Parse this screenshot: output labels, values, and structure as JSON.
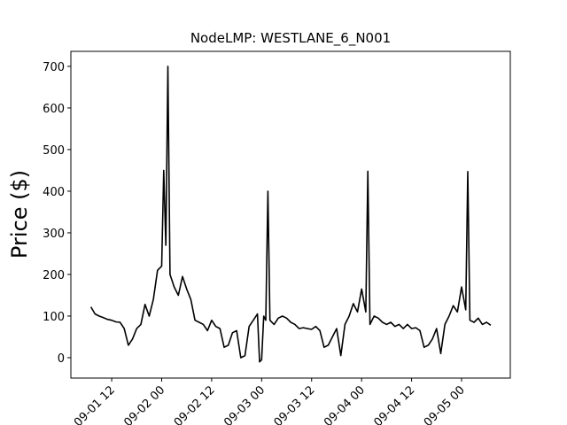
{
  "chart_data": {
    "type": "line",
    "title": "NodeLMP: WESTLANE_6_N001",
    "y_label": "Price ($)",
    "x": [
      "09-01 07:00",
      "09-01 08:00",
      "09-01 09:00",
      "09-01 10:00",
      "09-01 11:00",
      "09-01 12:00",
      "09-01 13:00",
      "09-01 14:00",
      "09-01 15:00",
      "09-01 16:00",
      "09-01 17:00",
      "09-01 18:00",
      "09-01 19:00",
      "09-01 20:00",
      "09-01 21:00",
      "09-01 22:00",
      "09-01 23:00",
      "09-02 00:00",
      "09-02 00:30",
      "09-02 01:00",
      "09-02 01:30",
      "09-02 02:00",
      "09-02 03:00",
      "09-02 04:00",
      "09-02 05:00",
      "09-02 06:00",
      "09-02 07:00",
      "09-02 08:00",
      "09-02 09:00",
      "09-02 10:00",
      "09-02 11:00",
      "09-02 12:00",
      "09-02 13:00",
      "09-02 14:00",
      "09-02 15:00",
      "09-02 16:00",
      "09-02 17:00",
      "09-02 18:00",
      "09-02 19:00",
      "09-02 20:00",
      "09-02 21:00",
      "09-02 22:00",
      "09-02 23:00",
      "09-02 23:30",
      "09-03 00:00",
      "09-03 00:30",
      "09-03 01:00",
      "09-03 01:30",
      "09-03 02:00",
      "09-03 03:00",
      "09-03 04:00",
      "09-03 05:00",
      "09-03 06:00",
      "09-03 07:00",
      "09-03 08:00",
      "09-03 09:00",
      "09-03 10:00",
      "09-03 11:00",
      "09-03 12:00",
      "09-03 13:00",
      "09-03 14:00",
      "09-03 15:00",
      "09-03 16:00",
      "09-03 17:00",
      "09-03 18:00",
      "09-03 19:00",
      "09-03 20:00",
      "09-03 21:00",
      "09-03 22:00",
      "09-03 23:00",
      "09-04 00:00",
      "09-04 01:00",
      "09-04 01:30",
      "09-04 02:00",
      "09-04 03:00",
      "09-04 04:00",
      "09-04 05:00",
      "09-04 06:00",
      "09-04 07:00",
      "09-04 08:00",
      "09-04 09:00",
      "09-04 10:00",
      "09-04 11:00",
      "09-04 12:00",
      "09-04 13:00",
      "09-04 14:00",
      "09-04 15:00",
      "09-04 16:00",
      "09-04 17:00",
      "09-04 18:00",
      "09-04 19:00",
      "09-04 20:00",
      "09-04 21:00",
      "09-04 22:00",
      "09-04 23:00",
      "09-05 00:00",
      "09-05 01:00",
      "09-05 01:30",
      "09-05 02:00",
      "09-05 03:00",
      "09-05 04:00",
      "09-05 05:00",
      "09-05 06:00",
      "09-05 07:00"
    ],
    "series": [
      {
        "color": "#000000",
        "values": [
          122,
          105,
          100,
          96,
          92,
          90,
          86,
          85,
          70,
          30,
          45,
          70,
          80,
          128,
          100,
          140,
          210,
          220,
          450,
          270,
          700,
          200,
          170,
          150,
          195,
          165,
          140,
          90,
          85,
          80,
          65,
          90,
          75,
          70,
          25,
          30,
          60,
          65,
          0,
          5,
          75,
          90,
          105,
          -10,
          -5,
          100,
          90,
          400,
          90,
          80,
          95,
          100,
          95,
          85,
          80,
          70,
          72,
          70,
          68,
          75,
          65,
          25,
          30,
          50,
          70,
          5,
          80,
          100,
          130,
          110,
          165,
          110,
          448,
          80,
          100,
          95,
          85,
          80,
          85,
          75,
          80,
          70,
          80,
          70,
          72,
          65,
          25,
          30,
          45,
          70,
          10,
          80,
          100,
          125,
          110,
          170,
          115,
          447,
          90,
          85,
          95,
          80,
          85,
          78
        ]
      }
    ],
    "xlim": [
      "09-01 02:12",
      "09-05 11:42"
    ],
    "xticks": [
      {
        "value": "09-01 12:00",
        "label": "09-01 12"
      },
      {
        "value": "09-02 00:00",
        "label": "09-02 00"
      },
      {
        "value": "09-02 12:00",
        "label": "09-02 12"
      },
      {
        "value": "09-03 00:00",
        "label": "09-03 00"
      },
      {
        "value": "09-03 12:00",
        "label": "09-03 12"
      },
      {
        "value": "09-04 00:00",
        "label": "09-04 00"
      },
      {
        "value": "09-04 12:00",
        "label": "09-04 12"
      },
      {
        "value": "09-05 00:00",
        "label": "09-05 00"
      }
    ],
    "ylim": [
      -49,
      736
    ],
    "yticks": [
      0,
      100,
      200,
      300,
      400,
      500,
      600,
      700
    ]
  }
}
